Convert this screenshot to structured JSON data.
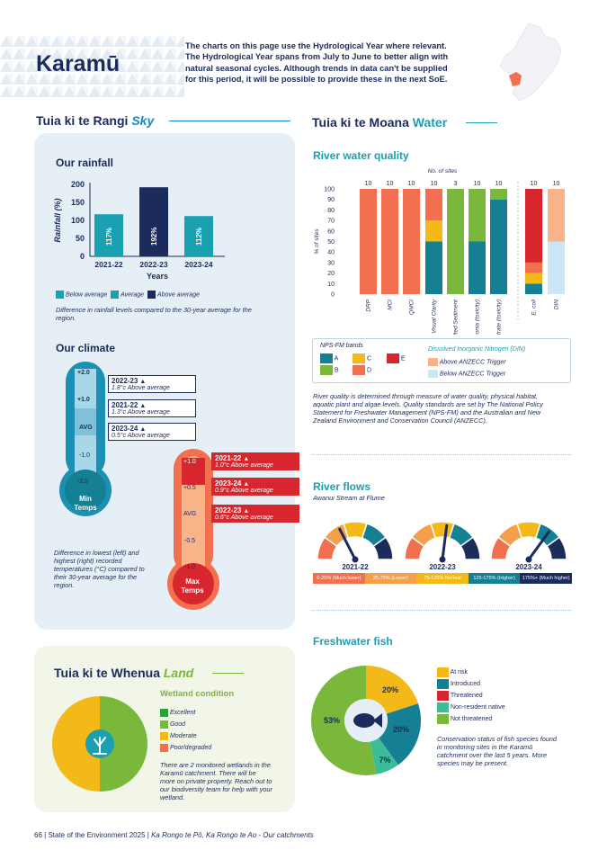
{
  "page": {
    "title": "Karamū",
    "intro": "The charts on this page use the Hydrological Year where relevant. The Hydrological Year spans from July to June to better align with natural seasonal cycles. Although trends in data can't be supplied for this period, it will be possible to provide these in the next SoE."
  },
  "sky": {
    "heading": "Tuia ki te Rangi",
    "heading_accent": "Sky",
    "rainfall": {
      "title": "Our rainfall",
      "note": "Difference in rainfall levels compared to the 30-year average for the region.",
      "legend": [
        "Below average",
        "Average",
        "Above average"
      ]
    },
    "climate": {
      "title": "Our climate",
      "note": "Difference in lowest (left) and highest (right) recorded temperatures (°C) compared to their 30-year average for the region.",
      "min_label_1": "Min",
      "min_label_2": "Temps",
      "max_label_1": "Max",
      "max_label_2": "Temps",
      "min_ticks": [
        "+2.0",
        "+1.0",
        "AVG",
        "-1.0",
        "-2.0"
      ],
      "max_ticks": [
        "+1.0",
        "+0.5",
        "AVG",
        "-0.5",
        "-1.0"
      ],
      "min_flags": [
        {
          "year": "2022-23",
          "text": "1.8°c Above average"
        },
        {
          "year": "2021-22",
          "text": "1.3°c Above average"
        },
        {
          "year": "2023-24",
          "text": "0.5°c Above average"
        }
      ],
      "max_flags": [
        {
          "year": "2021-22",
          "text": "1.0°c Above average"
        },
        {
          "year": "2023-24",
          "text": "0.9°c Above average"
        },
        {
          "year": "2022-23",
          "text": "0.6°c Above average"
        }
      ]
    }
  },
  "water": {
    "heading": "Tuia ki te Moana",
    "heading_accent": "Water",
    "quality": {
      "title": "River water quality",
      "legend_title": "NPS-FM bands",
      "bands": [
        "A",
        "B",
        "C",
        "D",
        "E"
      ],
      "din_title": "Dissolved Inorganic Nitrogen (DIN)",
      "din_items": [
        "Above ANZECC Trigger",
        "Below ANZECC Trigger"
      ],
      "note": "River quality is determined through measure of water quality, physical habitat, aquatic plant and algae levels. Quality standards are set by The National Policy Statement for Freshwater Management (NPS-FM) and the Australian and New Zealand Environment and Conservation Council (ANZECC)."
    },
    "flows": {
      "title": "River flows",
      "subtitle": "Awanui Stream at Flume",
      "years": [
        "2021-22",
        "2022-23",
        "2023-24"
      ],
      "needle_pct": [
        70,
        108,
        140
      ],
      "bands": [
        "0-25% (Much lower)",
        "25-75% (Lower)",
        "75-125% Normal",
        "125-175% (Higher)",
        "175%+ (Much higher)"
      ]
    },
    "fish": {
      "title": "Freshwater fish",
      "legend": [
        "At risk",
        "Introduced",
        "Threatened",
        "Non-resident native",
        "Not threatened"
      ],
      "labels": [
        "20%",
        "20%",
        "7%",
        "53%"
      ],
      "note": "Conservation status of fish species found in monitoring sites in the Karamū catchment over the last 5 years. More species may be present."
    }
  },
  "land": {
    "heading": "Tuia ki te Whenua",
    "heading_accent": "Land",
    "wetland": {
      "title": "Wetland condition",
      "legend": [
        "Excellent",
        "Good",
        "Moderate",
        "Poor/degraded"
      ],
      "note": "There are 2 monitored wetlands in the Karamū catchment. There will be more on private property. Reach out to our biodiversity team for help with your wetland."
    }
  },
  "footer": {
    "page_no": "66",
    "sep": "|",
    "text1": "State of the Environment 2025",
    "text2": "Ka Rongo te Pō, Ka Rongo te Ao - Our catchments"
  },
  "chart_data": [
    {
      "type": "bar",
      "title": "Our rainfall",
      "xlabel": "Years",
      "ylabel": "Rainfall (%)",
      "categories": [
        "2021-22",
        "2022-23",
        "2023-24"
      ],
      "values": [
        117,
        192,
        112
      ],
      "data_labels": [
        "117%",
        "192%",
        "112%"
      ],
      "classes": [
        "Average",
        "Above average",
        "Average"
      ],
      "yticks": [
        "0",
        "50",
        "100",
        "150",
        "200"
      ],
      "ylim": [
        0,
        200
      ]
    },
    {
      "type": "bar",
      "title": "River water quality",
      "ylabel": "% of sites",
      "sites_label": "No. of sites",
      "categories": [
        "DRP",
        "MCI",
        "QMCI",
        "Visual Clarity",
        "Deposited Sediment",
        "Ammonia (toxicity)",
        "Nitrate (toxicity)",
        "E. coli",
        "DIN"
      ],
      "sites": [
        "10",
        "10",
        "10",
        "10",
        "3",
        "10",
        "10",
        "10",
        "10"
      ],
      "yticks": [
        "0",
        "10",
        "20",
        "30",
        "40",
        "50",
        "60",
        "70",
        "80",
        "90",
        "100"
      ],
      "ylim": [
        0,
        100
      ],
      "stacks": [
        [
          {
            "c": "D",
            "v": 100
          }
        ],
        [
          {
            "c": "D",
            "v": 100
          }
        ],
        [
          {
            "c": "D",
            "v": 100
          }
        ],
        [
          {
            "c": "A",
            "v": 50
          },
          {
            "c": "C",
            "v": 20
          },
          {
            "c": "D",
            "v": 30
          }
        ],
        [
          {
            "c": "B",
            "v": 100
          }
        ],
        [
          {
            "c": "A",
            "v": 50
          },
          {
            "c": "B",
            "v": 50
          }
        ],
        [
          {
            "c": "A",
            "v": 90
          },
          {
            "c": "B",
            "v": 10
          }
        ],
        [
          {
            "c": "A",
            "v": 10
          },
          {
            "c": "C",
            "v": 10
          },
          {
            "c": "D",
            "v": 10
          },
          {
            "c": "E",
            "v": 70
          }
        ],
        [
          {
            "c": "DINB",
            "v": 50
          },
          {
            "c": "DINA",
            "v": 50
          }
        ]
      ]
    },
    {
      "type": "pie",
      "title": "Freshwater fish",
      "labels": [
        "At risk",
        "Introduced",
        "Threatened",
        "Non-resident native",
        "Not threatened"
      ],
      "values": [
        20,
        20,
        0,
        7,
        53
      ]
    },
    {
      "type": "pie",
      "title": "Wetland condition",
      "labels": [
        "Excellent",
        "Good",
        "Moderate",
        "Poor/degraded"
      ],
      "values": [
        0,
        50,
        50,
        0
      ]
    }
  ],
  "colors": {
    "navy": "#1b2b5b",
    "teal": "#1aa0b0",
    "blue": "#1188c9",
    "green": "#79b83a",
    "yellow": "#f2b918",
    "orange": "#f26f4f",
    "red": "#d8262e",
    "peach": "#f9b389",
    "lightblue": "#cbe6f6",
    "darkteal": "#157f93"
  }
}
